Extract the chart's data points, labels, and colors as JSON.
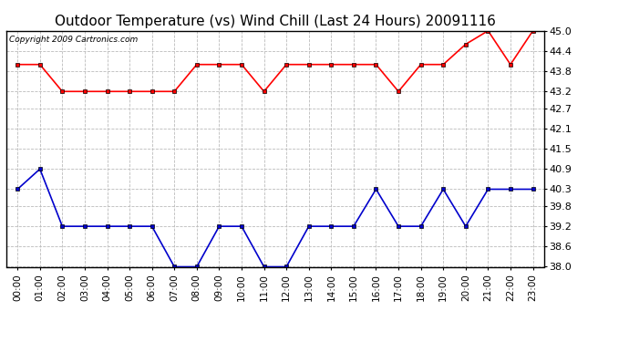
{
  "title": "Outdoor Temperature (vs) Wind Chill (Last 24 Hours) 20091116",
  "copyright": "Copyright 2009 Cartronics.com",
  "x_labels": [
    "00:00",
    "01:00",
    "02:00",
    "03:00",
    "04:00",
    "05:00",
    "06:00",
    "07:00",
    "08:00",
    "09:00",
    "10:00",
    "11:00",
    "12:00",
    "13:00",
    "14:00",
    "15:00",
    "16:00",
    "17:00",
    "18:00",
    "19:00",
    "20:00",
    "21:00",
    "22:00",
    "23:00"
  ],
  "temp_red": [
    44.0,
    44.0,
    43.2,
    43.2,
    43.2,
    43.2,
    43.2,
    43.2,
    44.0,
    44.0,
    44.0,
    43.2,
    44.0,
    44.0,
    44.0,
    44.0,
    44.0,
    43.2,
    44.0,
    44.0,
    44.6,
    45.0,
    44.0,
    45.0
  ],
  "wind_chill_blue": [
    40.3,
    40.9,
    39.2,
    39.2,
    39.2,
    39.2,
    39.2,
    38.0,
    38.0,
    39.2,
    39.2,
    38.0,
    38.0,
    39.2,
    39.2,
    39.2,
    40.3,
    39.2,
    39.2,
    40.3,
    39.2,
    40.3,
    40.3,
    40.3
  ],
  "ylim": [
    38.0,
    45.0
  ],
  "yticks": [
    38.0,
    38.6,
    39.2,
    39.8,
    40.3,
    40.9,
    41.5,
    42.1,
    42.7,
    43.2,
    43.8,
    44.4,
    45.0
  ],
  "red_color": "#ff0000",
  "blue_color": "#0000cc",
  "grid_color": "#bbbbbb",
  "bg_color": "#ffffff",
  "title_fontsize": 11,
  "copyright_fontsize": 6.5,
  "tick_fontsize": 7.5,
  "ytick_fontsize": 8
}
